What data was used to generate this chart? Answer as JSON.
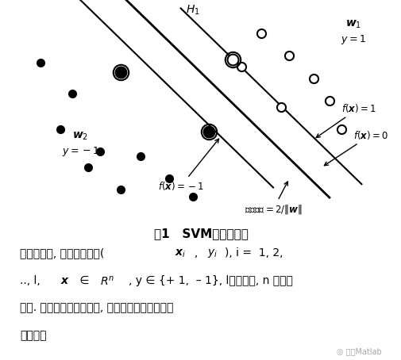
{
  "bg_color": "#ffffff",
  "title": "图1   SVM二分类问题",
  "para_line1": "不失一般性, 设训练样本为(",
  "para_line1b": "x",
  "para_line1c": "i",
  "para_line1d": ", ",
  "para_line1e": "y",
  "para_line1f": "i",
  "para_line1g": "), i =  1, 2,",
  "para_line2": ".., l,  x ∈ R",
  "para_line2b": "n",
  "para_line2c": ", y ∈ {+ 1,  – 1}, l为样本数, n 为输入",
  "para_line3": "维数. 在线性可分的情况下, 将两类样本完全分开的",
  "para_line4": "超平面为",
  "watermark": "◎ 天天Matlab"
}
